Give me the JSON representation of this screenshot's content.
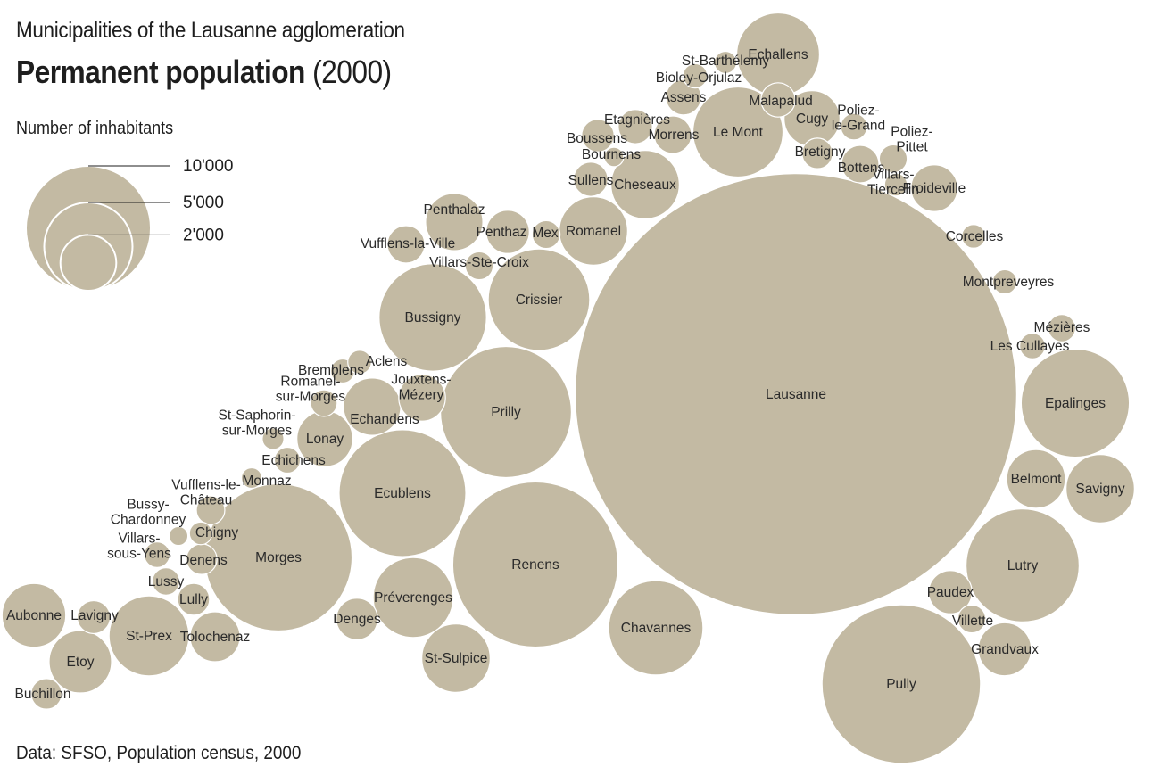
{
  "title": "Municipalities of the Lausanne agglomeration",
  "headline": {
    "bold": "Permanent population",
    "year": "(2000)"
  },
  "source": "Data: SFSO, Population census, 2000",
  "colors": {
    "bubble": "#c3baa3",
    "bubble_stroke": "#ffffff",
    "text": "#2a2a2a"
  },
  "chart_data": {
    "type": "bubble",
    "title": "Permanent population (2000)",
    "size_legend": {
      "title": "Number of inhabitants",
      "items": [
        {
          "label": "10'000",
          "value": 10000
        },
        {
          "label": "5'000",
          "value": 5000
        },
        {
          "label": "2'000",
          "value": 2000
        }
      ]
    },
    "municipalities": [
      {
        "name": "Lausanne",
        "value": 124900
      },
      {
        "name": "Renens",
        "value": 17500
      },
      {
        "name": "Pully",
        "value": 16100
      },
      {
        "name": "Morges",
        "value": 13900
      },
      {
        "name": "Prilly",
        "value": 11000
      },
      {
        "name": "Ecublens",
        "value": 10300
      },
      {
        "name": "Lutry",
        "value": 8200
      },
      {
        "name": "Epalinges",
        "value": 7500
      },
      {
        "name": "Bussigny",
        "value": 7400
      },
      {
        "name": "Crissier",
        "value": 6600
      },
      {
        "name": "Le Mont",
        "value": 5200
      },
      {
        "name": "Chavannes",
        "value": 5700
      },
      {
        "name": "St-Prex",
        "value": 4100
      },
      {
        "name": "Préverenges",
        "value": 4100
      },
      {
        "name": "Romanel",
        "value": 3000
      },
      {
        "name": "Cheseaux",
        "value": 3000
      },
      {
        "name": "St-Sulpice",
        "value": 3000
      },
      {
        "name": "Echallens",
        "value": 4400
      },
      {
        "name": "Savigny",
        "value": 3000
      },
      {
        "name": "Aubonne",
        "value": 2600
      },
      {
        "name": "Lonay",
        "value": 2000
      },
      {
        "name": "Etoy",
        "value": 2500
      },
      {
        "name": "Belmont",
        "value": 2200
      },
      {
        "name": "Cugy",
        "value": 2000
      },
      {
        "name": "Tolochenaz",
        "value": 1600
      },
      {
        "name": "Echandens",
        "value": 2100
      },
      {
        "name": "Penthalaz",
        "value": 2100
      },
      {
        "name": "Jouxtens-Mézery",
        "value": 1400
      },
      {
        "name": "Froideville",
        "value": 1400
      },
      {
        "name": "Grandvaux",
        "value": 1800
      },
      {
        "name": "Denges",
        "value": 1100
      },
      {
        "name": "Paudex",
        "value": 1200
      },
      {
        "name": "Penthaz",
        "value": 1200
      },
      {
        "name": "Vufflens-la-Ville",
        "value": 900
      },
      {
        "name": "Lavigny",
        "value": 700
      },
      {
        "name": "Lully",
        "value": 650
      },
      {
        "name": "Morrens",
        "value": 900
      },
      {
        "name": "Bottens",
        "value": 900
      },
      {
        "name": "Sullens",
        "value": 750
      },
      {
        "name": "Etagnières",
        "value": 750
      },
      {
        "name": "Malapalud",
        "value": 750
      },
      {
        "name": "Boussens",
        "value": 680
      },
      {
        "name": "Mex",
        "value": 500
      },
      {
        "name": "Villars-Ste-Croix",
        "value": 500
      },
      {
        "name": "Denens",
        "value": 600
      },
      {
        "name": "Buchillon",
        "value": 600
      },
      {
        "name": "Bretigny",
        "value": 600
      },
      {
        "name": "Poliez-Pittet",
        "value": 500
      },
      {
        "name": "Lussy",
        "value": 480
      },
      {
        "name": "Vufflens-le-Château",
        "value": 520
      },
      {
        "name": "Romanel-sur-Morges",
        "value": 450
      },
      {
        "name": "Chigny",
        "value": 330
      },
      {
        "name": "Bussy-Chardonney",
        "value": 230
      },
      {
        "name": "Villars-sous-Yens",
        "value": 420
      },
      {
        "name": "St-Saphorin-sur-Morges",
        "value": 300
      },
      {
        "name": "Echichens",
        "value": 430
      },
      {
        "name": "Monnaz",
        "value": 270
      },
      {
        "name": "Bremblens",
        "value": 370
      },
      {
        "name": "Aclens",
        "value": 360
      },
      {
        "name": "Mézières",
        "value": 480
      },
      {
        "name": "Les Cullayes",
        "value": 420
      },
      {
        "name": "Corcelles",
        "value": 360
      },
      {
        "name": "Montpreveyres",
        "value": 380
      },
      {
        "name": "Villette",
        "value": 500
      },
      {
        "name": "Villars-Tiercelin",
        "value": 330
      },
      {
        "name": "Poliez-le-Grand",
        "value": 450
      },
      {
        "name": "Assens",
        "value": 800
      },
      {
        "name": "Bioley-Orjulaz",
        "value": 380
      },
      {
        "name": "St-Barthélemy",
        "value": 320
      },
      {
        "name": "Bournens",
        "value": 240
      }
    ]
  }
}
